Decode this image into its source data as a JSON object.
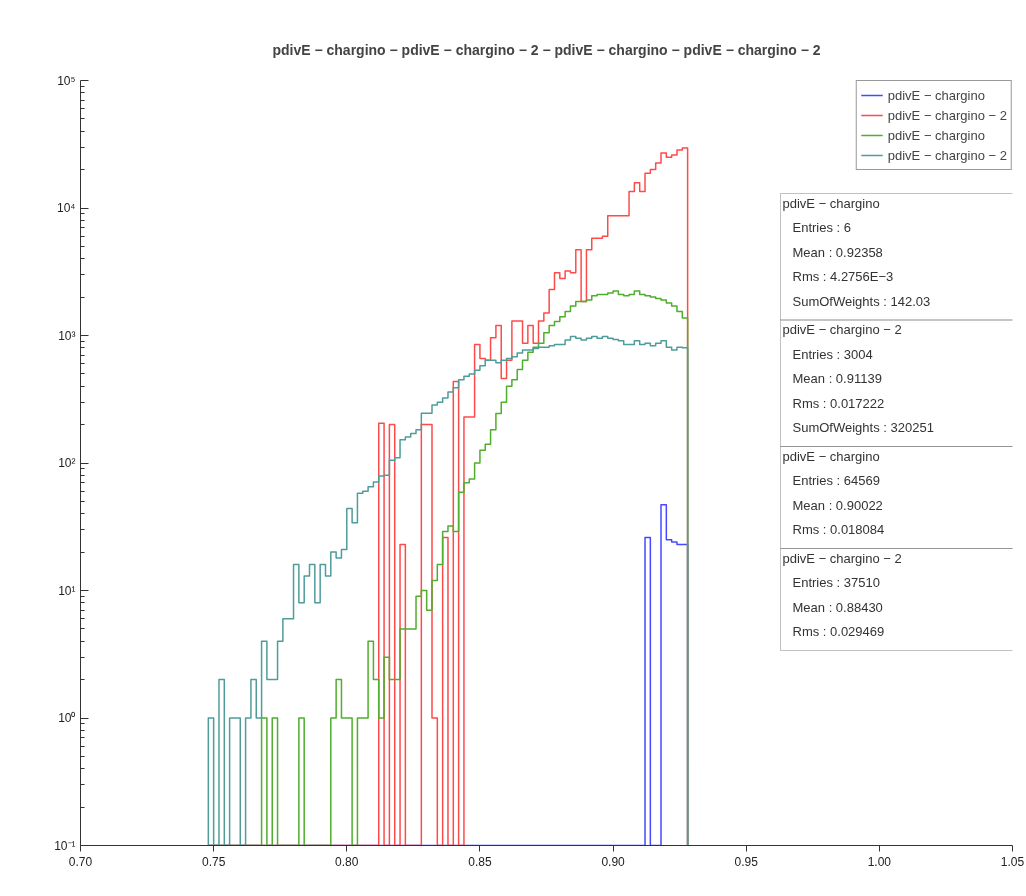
{
  "chart_data": {
    "type": "histogram",
    "title": "pdivE − chargino − pdivE − chargino − 2 − pdivE − chargino − pdivE − chargino − 2",
    "bins": [
      0.748,
      0.75,
      0.752,
      0.754,
      0.756,
      0.758,
      0.76,
      0.762,
      0.764,
      0.766,
      0.768,
      0.77,
      0.772,
      0.774,
      0.776,
      0.778,
      0.78,
      0.782,
      0.784,
      0.786,
      0.788,
      0.79,
      0.792,
      0.794,
      0.796,
      0.798,
      0.8,
      0.802,
      0.804,
      0.806,
      0.808,
      0.81,
      0.812,
      0.814,
      0.816,
      0.818,
      0.82,
      0.822,
      0.824,
      0.826,
      0.828,
      0.83,
      0.832,
      0.834,
      0.836,
      0.838,
      0.84,
      0.842,
      0.844,
      0.846,
      0.848,
      0.85,
      0.852,
      0.854,
      0.856,
      0.858,
      0.86,
      0.862,
      0.864,
      0.866,
      0.868,
      0.87,
      0.872,
      0.874,
      0.876,
      0.878,
      0.88,
      0.882,
      0.884,
      0.886,
      0.888,
      0.89,
      0.892,
      0.894,
      0.896,
      0.898,
      0.9,
      0.902,
      0.904,
      0.906,
      0.908,
      0.91,
      0.912,
      0.914,
      0.916,
      0.918,
      0.92,
      0.922,
      0.924,
      0.926,
      0.928
    ],
    "series": [
      {
        "name": "pdivE − chargino",
        "color": "#4848ff",
        "values": [
          null,
          null,
          null,
          null,
          null,
          null,
          null,
          null,
          null,
          null,
          null,
          null,
          null,
          null,
          null,
          null,
          null,
          null,
          null,
          null,
          null,
          null,
          null,
          null,
          null,
          null,
          null,
          null,
          null,
          null,
          null,
          null,
          null,
          null,
          null,
          null,
          null,
          null,
          null,
          null,
          null,
          null,
          null,
          null,
          null,
          null,
          null,
          null,
          null,
          null,
          null,
          null,
          null,
          null,
          null,
          null,
          null,
          null,
          null,
          null,
          null,
          null,
          null,
          null,
          null,
          null,
          null,
          null,
          null,
          null,
          null,
          null,
          null,
          null,
          null,
          null,
          null,
          null,
          null,
          null,
          null,
          null,
          26,
          null,
          null,
          47,
          25,
          24,
          23,
          23
        ]
      },
      {
        "name": "pdivE − chargino − 2",
        "color": "#ff4a4a",
        "values": [
          null,
          null,
          null,
          null,
          null,
          null,
          null,
          null,
          null,
          null,
          null,
          null,
          null,
          null,
          null,
          null,
          null,
          null,
          null,
          null,
          null,
          null,
          null,
          null,
          null,
          null,
          null,
          null,
          null,
          null,
          null,
          null,
          205,
          null,
          200,
          null,
          23,
          null,
          null,
          null,
          200,
          200,
          1,
          null,
          26,
          null,
          435,
          null,
          230,
          230,
          850,
          660,
          640,
          960,
          1200,
          460,
          640,
          1300,
          1300,
          870,
          1200,
          870,
          1300,
          1500,
          2300,
          3100,
          2800,
          3200,
          3100,
          4700,
          1850,
          4700,
          5800,
          5800,
          6000,
          8700,
          8700,
          8700,
          8700,
          13500,
          15800,
          13500,
          18700,
          20000,
          22500,
          27000,
          25000,
          26000,
          28500,
          29500
        ]
      },
      {
        "name": "pdivE − chargino",
        "color": "#4fae2c",
        "values": [
          null,
          null,
          null,
          null,
          null,
          null,
          null,
          null,
          null,
          null,
          1,
          null,
          1,
          null,
          null,
          null,
          null,
          1,
          null,
          null,
          null,
          null,
          null,
          1,
          2,
          1,
          1,
          null,
          1,
          1,
          4,
          2,
          1,
          3,
          2,
          2,
          5,
          5,
          5,
          9,
          10,
          7,
          12,
          16,
          29,
          32,
          29,
          59,
          70,
          75,
          100,
          126,
          140,
          182,
          245,
          300,
          400,
          450,
          540,
          640,
          740,
          810,
          870,
          1050,
          1200,
          1290,
          1400,
          1540,
          1700,
          1850,
          1850,
          1900,
          2050,
          2100,
          2100,
          2150,
          2230,
          2100,
          2050,
          2100,
          2230,
          2100,
          2050,
          2000,
          1950,
          1900,
          1800,
          1700,
          1540,
          1370
        ]
      },
      {
        "name": "pdivE − chargino − 2",
        "color": "#4f9c9c",
        "values": [
          1,
          null,
          2,
          null,
          1,
          1,
          null,
          1,
          2,
          1,
          4,
          2,
          2,
          4,
          6,
          6,
          16,
          8,
          13,
          16,
          8,
          16,
          13,
          20,
          18,
          21,
          44,
          34,
          58,
          60,
          65,
          71,
          79,
          80,
          105,
          110,
          152,
          160,
          170,
          182,
          246,
          246,
          285,
          300,
          324,
          360,
          390,
          450,
          480,
          500,
          535,
          580,
          640,
          640,
          610,
          640,
          660,
          680,
          730,
          770,
          770,
          790,
          810,
          810,
          830,
          850,
          850,
          920,
          980,
          950,
          920,
          950,
          980,
          950,
          980,
          950,
          930,
          910,
          850,
          850,
          910,
          850,
          870,
          830,
          870,
          910,
          810,
          770,
          810,
          800
        ]
      }
    ],
    "xlim": [
      0.7,
      1.05
    ],
    "ylim": [
      0.1,
      100000
    ],
    "xticks": [
      {
        "value": 0.7,
        "label": "0.70"
      },
      {
        "value": 0.75,
        "label": "0.75"
      },
      {
        "value": 0.8,
        "label": "0.80"
      },
      {
        "value": 0.85,
        "label": "0.85"
      },
      {
        "value": 0.9,
        "label": "0.90"
      },
      {
        "value": 0.95,
        "label": "0.95"
      },
      {
        "value": 1.0,
        "label": "1.00"
      },
      {
        "value": 1.05,
        "label": "1.05"
      }
    ],
    "yticks": [
      {
        "value": 0.1,
        "label": "10⁻¹"
      },
      {
        "value": 1,
        "label": "10⁰"
      },
      {
        "value": 10,
        "label": "10¹"
      },
      {
        "value": 100,
        "label": "10²"
      },
      {
        "value": 1000,
        "label": "10³"
      },
      {
        "value": 10000,
        "label": "10⁴"
      },
      {
        "value": 100000,
        "label": "10⁵"
      }
    ],
    "log": "y",
    "legend": "top right",
    "annotations": [
      "pdivE − chargino\nEntries : 6\nMean : 0.92358\nRms : 4.2756E−3\nSumOfWeights : 142.03",
      "pdivE − chargino − 2\nEntries : 3004\nMean : 0.91139\nRms : 0.017222\nSumOfWeights : 320251",
      "pdivE − chargino\nEntries : 64569\nMean : 0.90022\nRms : 0.018084",
      "pdivE − chargino − 2\nEntries : 37510\nMean : 0.88430\nRms : 0.029469"
    ]
  }
}
